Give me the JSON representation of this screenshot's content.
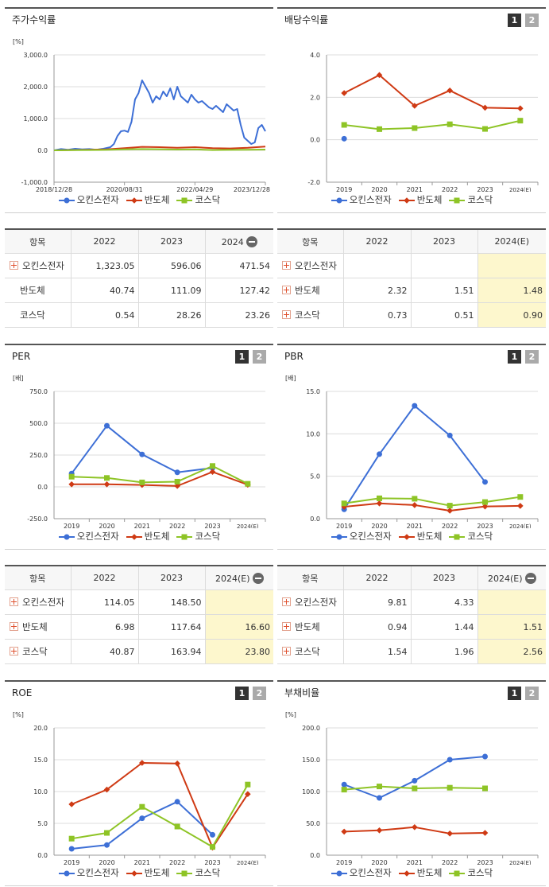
{
  "colors": {
    "s1": "#3d6fd6",
    "s2": "#cf3a14",
    "s3": "#8ec426"
  },
  "legend_labels": [
    "오킨스전자",
    "반도체",
    "코스닥"
  ],
  "charts": [
    {
      "key": "stock_return",
      "title": "주가수익률",
      "has_tabs": false,
      "chart_data": {
        "type": "line",
        "title": "주가수익률",
        "unit": "[%]",
        "ylim": [
          -1000,
          3000
        ],
        "yticks": [
          3000,
          2000,
          1000,
          0,
          -1000
        ],
        "ytick_labels": [
          "3,000.0",
          "2,000.0",
          "1,000.0",
          "0.0",
          "-1,000.0"
        ],
        "xlim": [
          0,
          60
        ],
        "xticks": [
          0,
          20,
          40,
          60
        ],
        "xtick_labels": [
          "2018/12/28",
          "2020/08/31",
          "2022/04/29",
          "2023/12/28"
        ],
        "series": [
          {
            "name": "오킨스전자",
            "color": "#3d6fd6",
            "x": [
              0,
              2,
              4,
              6,
              8,
              10,
              12,
              14,
              16,
              17,
              18,
              19,
              20,
              21,
              22,
              23,
              24,
              25,
              26,
              27,
              28,
              29,
              30,
              31,
              32,
              33,
              34,
              35,
              36,
              37,
              38,
              39,
              40,
              41,
              42,
              43,
              44,
              45,
              46,
              47,
              48,
              49,
              50,
              51,
              52,
              53,
              54,
              55,
              56,
              57,
              58,
              59,
              60
            ],
            "y": [
              0,
              40,
              20,
              50,
              30,
              40,
              20,
              50,
              100,
              200,
              450,
              600,
              620,
              580,
              900,
              1600,
              1800,
              2200,
              2000,
              1800,
              1500,
              1700,
              1600,
              1850,
              1700,
              1950,
              1600,
              2000,
              1700,
              1600,
              1500,
              1750,
              1600,
              1500,
              1550,
              1450,
              1350,
              1300,
              1400,
              1300,
              1200,
              1450,
              1350,
              1250,
              1300,
              800,
              400,
              300,
              200,
              250,
              700,
              800,
              600
            ]
          },
          {
            "name": "반도체",
            "color": "#cf3a14",
            "x": [
              0,
              5,
              10,
              15,
              20,
              25,
              30,
              35,
              40,
              45,
              50,
              55,
              60
            ],
            "y": [
              0,
              10,
              20,
              30,
              70,
              110,
              100,
              80,
              100,
              70,
              60,
              80,
              120
            ]
          },
          {
            "name": "코스닥",
            "color": "#8ec426",
            "x": [
              0,
              5,
              10,
              15,
              20,
              25,
              30,
              35,
              40,
              45,
              50,
              55,
              60
            ],
            "y": [
              0,
              5,
              10,
              15,
              30,
              40,
              35,
              25,
              30,
              10,
              15,
              20,
              25
            ]
          }
        ]
      }
    },
    {
      "key": "dividend_yield",
      "title": "배당수익률",
      "has_tabs": true,
      "chart_data": {
        "type": "line",
        "title": "배당수익률",
        "unit": "",
        "ylim": [
          -2,
          4
        ],
        "yticks": [
          4,
          2,
          0,
          -2
        ],
        "ytick_labels": [
          "4.0",
          "2.0",
          "0.0",
          "-2.0"
        ],
        "categories": [
          "2019",
          "2020",
          "2021",
          "2022",
          "2023",
          "2024(E)"
        ],
        "series": [
          {
            "name": "오킨스전자",
            "color": "#3d6fd6",
            "values": [
              0.05,
              null,
              null,
              null,
              null,
              null
            ]
          },
          {
            "name": "반도체",
            "color": "#cf3a14",
            "values": [
              2.2,
              3.05,
              1.6,
              2.32,
              1.51,
              1.48
            ]
          },
          {
            "name": "코스닥",
            "color": "#8ec426",
            "values": [
              0.7,
              0.5,
              0.55,
              0.73,
              0.51,
              0.9
            ]
          }
        ]
      }
    },
    {
      "key": "per",
      "title": "PER",
      "has_tabs": true,
      "chart_data": {
        "type": "line",
        "title": "PER",
        "unit": "[배]",
        "ylim": [
          -250,
          750
        ],
        "yticks": [
          750,
          500,
          250,
          0,
          -250
        ],
        "ytick_labels": [
          "750.0",
          "500.0",
          "250.0",
          "0.0",
          "-250.0"
        ],
        "categories": [
          "2019",
          "2020",
          "2021",
          "2022",
          "2023",
          "2024(E)"
        ],
        "series": [
          {
            "name": "오킨스전자",
            "color": "#3d6fd6",
            "values": [
              105,
              480,
              255,
              114.05,
              148.5,
              null
            ]
          },
          {
            "name": "반도체",
            "color": "#cf3a14",
            "values": [
              20,
              20,
              15,
              6.98,
              117.64,
              16.6
            ]
          },
          {
            "name": "코스닥",
            "color": "#8ec426",
            "values": [
              80,
              70,
              35,
              40.87,
              163.94,
              23.8
            ]
          }
        ]
      }
    },
    {
      "key": "pbr",
      "title": "PBR",
      "has_tabs": true,
      "chart_data": {
        "type": "line",
        "title": "PBR",
        "unit": "[배]",
        "ylim": [
          0,
          15
        ],
        "yticks": [
          15,
          10,
          5,
          0
        ],
        "ytick_labels": [
          "15.0",
          "10.0",
          "5.0",
          "0.0"
        ],
        "categories": [
          "2019",
          "2020",
          "2021",
          "2022",
          "2023",
          "2024(E)"
        ],
        "series": [
          {
            "name": "오킨스전자",
            "color": "#3d6fd6",
            "values": [
              1.1,
              7.6,
              13.3,
              9.81,
              4.33,
              null
            ]
          },
          {
            "name": "반도체",
            "color": "#cf3a14",
            "values": [
              1.4,
              1.8,
              1.6,
              0.94,
              1.44,
              1.51
            ]
          },
          {
            "name": "코스닥",
            "color": "#8ec426",
            "values": [
              1.8,
              2.4,
              2.35,
              1.54,
              1.96,
              2.56
            ]
          }
        ]
      }
    },
    {
      "key": "roe",
      "title": "ROE",
      "has_tabs": true,
      "chart_data": {
        "type": "line",
        "title": "ROE",
        "unit": "[%]",
        "ylim": [
          0,
          20
        ],
        "yticks": [
          20,
          15,
          10,
          5,
          0
        ],
        "ytick_labels": [
          "20.0",
          "15.0",
          "10.0",
          "5.0",
          "0.0"
        ],
        "categories": [
          "2019",
          "2020",
          "2021",
          "2022",
          "2023",
          "2024(E)"
        ],
        "series": [
          {
            "name": "오킨스전자",
            "color": "#3d6fd6",
            "values": [
              1.0,
              1.6,
              5.8,
              8.4,
              3.2,
              null
            ]
          },
          {
            "name": "반도체",
            "color": "#cf3a14",
            "values": [
              8.0,
              10.3,
              14.5,
              14.4,
              1.2,
              9.6
            ]
          },
          {
            "name": "코스닥",
            "color": "#8ec426",
            "values": [
              2.6,
              3.5,
              7.6,
              4.5,
              1.3,
              11.1
            ]
          }
        ]
      }
    },
    {
      "key": "debt_ratio",
      "title": "부채비율",
      "has_tabs": true,
      "chart_data": {
        "type": "line",
        "title": "부채비율",
        "unit": "[%]",
        "ylim": [
          0,
          200
        ],
        "yticks": [
          200,
          150,
          100,
          50,
          0
        ],
        "ytick_labels": [
          "200.0",
          "150.0",
          "100.0",
          "50.0",
          "0.0"
        ],
        "categories": [
          "2019",
          "2020",
          "2021",
          "2022",
          "2023",
          "2024(E)"
        ],
        "series": [
          {
            "name": "오킨스전자",
            "color": "#3d6fd6",
            "values": [
              111,
              90,
              117,
              150,
              155,
              null
            ]
          },
          {
            "name": "반도체",
            "color": "#cf3a14",
            "values": [
              37,
              39,
              44,
              34,
              35,
              null
            ]
          },
          {
            "name": "코스닥",
            "color": "#8ec426",
            "values": [
              103,
              108,
              105,
              106,
              105,
              null
            ]
          }
        ]
      }
    }
  ],
  "tables": [
    {
      "key": "t_stock",
      "header": [
        "항목",
        "2022",
        "2023",
        "2024"
      ],
      "minus": true,
      "est_col": false,
      "rows": [
        {
          "name": "오킨스전자",
          "plus": true,
          "values": [
            "1,323.05",
            "596.06",
            "471.54"
          ]
        },
        {
          "name": "반도체",
          "plus": false,
          "values": [
            "40.74",
            "111.09",
            "127.42"
          ]
        },
        {
          "name": "코스닥",
          "plus": false,
          "values": [
            "0.54",
            "28.26",
            "23.26"
          ]
        }
      ]
    },
    {
      "key": "t_div",
      "header": [
        "항목",
        "2022",
        "2023",
        "2024(E)"
      ],
      "minus": false,
      "est_col": true,
      "rows": [
        {
          "name": "오킨스전자",
          "plus": true,
          "values": [
            "",
            "",
            ""
          ]
        },
        {
          "name": "반도체",
          "plus": true,
          "values": [
            "2.32",
            "1.51",
            "1.48"
          ]
        },
        {
          "name": "코스닥",
          "plus": true,
          "values": [
            "0.73",
            "0.51",
            "0.90"
          ]
        }
      ]
    },
    {
      "key": "t_per",
      "header": [
        "항목",
        "2022",
        "2023",
        "2024(E)"
      ],
      "minus": true,
      "est_col": true,
      "rows": [
        {
          "name": "오킨스전자",
          "plus": true,
          "values": [
            "114.05",
            "148.50",
            ""
          ]
        },
        {
          "name": "반도체",
          "plus": true,
          "values": [
            "6.98",
            "117.64",
            "16.60"
          ]
        },
        {
          "name": "코스닥",
          "plus": true,
          "values": [
            "40.87",
            "163.94",
            "23.80"
          ]
        }
      ]
    },
    {
      "key": "t_pbr",
      "header": [
        "항목",
        "2022",
        "2023",
        "2024(E)"
      ],
      "minus": true,
      "est_col": true,
      "rows": [
        {
          "name": "오킨스전자",
          "plus": true,
          "values": [
            "9.81",
            "4.33",
            ""
          ]
        },
        {
          "name": "반도체",
          "plus": true,
          "values": [
            "0.94",
            "1.44",
            "1.51"
          ]
        },
        {
          "name": "코스닥",
          "plus": true,
          "values": [
            "1.54",
            "1.96",
            "2.56"
          ]
        }
      ]
    }
  ]
}
